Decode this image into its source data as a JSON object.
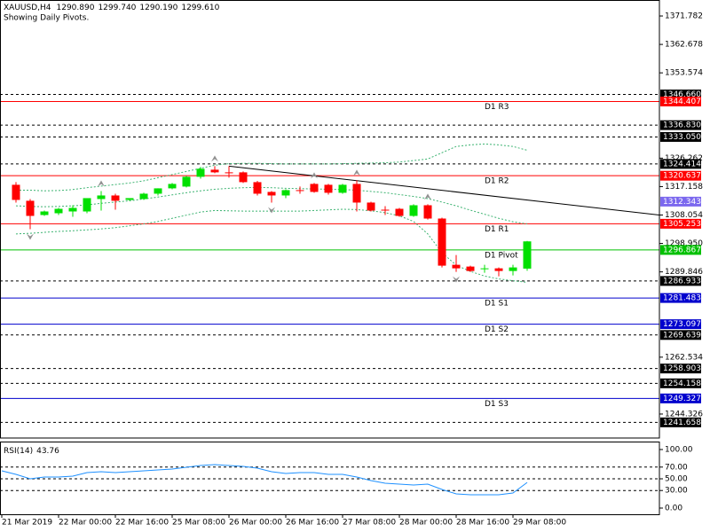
{
  "chart_data": {
    "type": "candlestick",
    "title": "XAUUSD,H4",
    "header_values": [
      "1290.890",
      "1299.740",
      "1290.190",
      "1299.610"
    ],
    "subtitle": "Showing Daily Pivots.",
    "categories": [
      "21 Mar 2019",
      null,
      null,
      null,
      "22 Mar 00:00",
      null,
      null,
      null,
      "22 Mar 16:00",
      null,
      null,
      null,
      "25 Mar 08:00",
      null,
      null,
      null,
      "26 Mar 00:00",
      null,
      null,
      null,
      "26 Mar 16:00",
      null,
      null,
      null,
      "27 Mar 08:00",
      null,
      null,
      null,
      "28 Mar 00:00",
      null,
      null,
      null,
      "28 Mar 16:00",
      null,
      null,
      null,
      "29 Mar 08:00",
      null
    ],
    "open": [
      null,
      1317.73,
      1312.61,
      1308.05,
      1308.62,
      1309.19,
      1309.19,
      1313.17,
      1314.31,
      1312.89,
      1313.17,
      1314.88,
      1316.59,
      1317.16,
      1320.29,
      1322.56,
      1321.71,
      1321.71,
      1318.58,
      1315.45,
      1314.31,
      1316.02,
      1318.01,
      1317.73,
      1315.17,
      1318.01,
      1312.04,
      1309.76,
      1310.04,
      1307.77,
      1311.18,
      1306.92,
      1292.12,
      1291.55,
      1290.7,
      1290.98,
      1290.13,
      1290.89
    ],
    "high": [
      null,
      1318.58,
      1313.17,
      1309.48,
      1310.33,
      1311.18,
      1313.46,
      1315.73,
      1314.88,
      1313.46,
      1315.17,
      1316.59,
      1318.3,
      1320.57,
      1323.42,
      1323.7,
      1323.7,
      1322.0,
      1319.0,
      1315.73,
      1316.3,
      1317.16,
      1318.3,
      1318.01,
      1318.01,
      1319.15,
      1312.3,
      1310.9,
      1310.33,
      1311.5,
      1311.5,
      1307.2,
      1295.25,
      1291.84,
      1292.12,
      1291.27,
      1292.12,
      1299.74
    ],
    "low": [
      null,
      1312.04,
      1303.5,
      1307.77,
      1308.05,
      1307.48,
      1308.62,
      1309.48,
      1309.76,
      1312.61,
      1312.89,
      1314.31,
      1316.3,
      1316.9,
      1319.7,
      1321.43,
      1320.0,
      1318.3,
      1314.31,
      1312.04,
      1313.46,
      1314.88,
      1315.17,
      1314.6,
      1314.88,
      1309.19,
      1309.19,
      1308.05,
      1307.48,
      1307.48,
      1306.6,
      1291.27,
      1289.85,
      1289.85,
      1289.56,
      1288.42,
      1288.71,
      1290.19
    ],
    "close": [
      null,
      1312.89,
      1307.77,
      1309.19,
      1310.04,
      1310.33,
      1313.46,
      1314.31,
      1312.61,
      1313.46,
      1314.88,
      1316.59,
      1318.01,
      1320.29,
      1322.85,
      1321.71,
      1321.43,
      1318.58,
      1314.88,
      1314.31,
      1316.02,
      1315.88,
      1315.45,
      1315.17,
      1317.73,
      1312.04,
      1309.48,
      1309.62,
      1307.77,
      1311.18,
      1306.92,
      1291.84,
      1290.98,
      1290.13,
      1290.98,
      1290.13,
      1291.27,
      1299.61
    ],
    "up_color": "#00e000",
    "down_color": "#ff0000",
    "ylim": [
      1236.65,
      1376.9
    ],
    "yticks": [
      1371.782,
      1362.678,
      1353.574,
      1326.262,
      1317.158,
      1308.054,
      {
        "value": 1298.95,
        "label": "1298.950"
      },
      1289.846,
      1262.534,
      1244.326
    ],
    "bands": {
      "color": "#3cb371",
      "upper": [
        null,
        1316,
        1316,
        1315.8,
        1315.9,
        1316.2,
        1316.8,
        1317.3,
        1317.8,
        1318.3,
        1319,
        1320,
        1321,
        1322,
        1323,
        1324,
        1324.5,
        1324.6,
        1324.6,
        1324.5,
        1324.4,
        1324.4,
        1324.4,
        1324.4,
        1324.5,
        1324.6,
        1324.7,
        1324.8,
        1325,
        1325.5,
        1326,
        1328,
        1330,
        1330.5,
        1330.8,
        1330.5,
        1330,
        1328.8
      ],
      "middle": [
        null,
        1311,
        1310.8,
        1310.7,
        1310.8,
        1311,
        1311.3,
        1311.8,
        1312.2,
        1312.6,
        1313.2,
        1313.8,
        1314.5,
        1315.2,
        1315.8,
        1316.3,
        1316.6,
        1316.8,
        1316.9,
        1316.8,
        1316.6,
        1316.5,
        1316.4,
        1316.3,
        1316.2,
        1316,
        1315.6,
        1315.2,
        1314.6,
        1314,
        1313.3,
        1312.2,
        1311,
        1309.6,
        1308.3,
        1307,
        1305.9,
        1305.2
      ],
      "lower": [
        null,
        1302,
        1302.2,
        1302.5,
        1302.8,
        1303,
        1303.3,
        1303.6,
        1304,
        1304.6,
        1305.2,
        1306,
        1307,
        1308,
        1309,
        1309.5,
        1309.4,
        1309.3,
        1309.3,
        1309.3,
        1309.3,
        1309.3,
        1309.5,
        1309.7,
        1309.9,
        1309.8,
        1309.4,
        1308.8,
        1307.8,
        1306,
        1302,
        1296,
        1292,
        1290,
        1288.5,
        1287.6,
        1287,
        1286.5
      ]
    },
    "trendline": {
      "color": "#000000",
      "x": [
        16,
        46.3
      ],
      "y": [
        1323.7,
        1308.05
      ]
    },
    "fractals": {
      "color": "#909090",
      "up": [
        7,
        15,
        22,
        25,
        30
      ],
      "down": [
        2,
        19,
        32
      ]
    },
    "levels": [
      {
        "price": {
          "value": 1346.66,
          "label": "1346.660"
        },
        "color": "#000000",
        "style": "dashed"
      },
      {
        "price": 1344.407,
        "name": "D1 R3",
        "color": "#ff0000",
        "style": "solid"
      },
      {
        "price": {
          "value": 1336.83,
          "label": "1336.830"
        },
        "color": "#000000",
        "style": "dashed"
      },
      {
        "price": {
          "value": 1333.05,
          "label": "1333.050"
        },
        "color": "#000000",
        "style": "dashed"
      },
      {
        "price": 1324.414,
        "color": "#000000",
        "style": "dashed"
      },
      {
        "price": 1320.637,
        "name": "D1 R2",
        "color": "#ff0000",
        "style": "solid"
      },
      {
        "price": 1312.343,
        "color": "#7b68ee",
        "style": "none"
      },
      {
        "price": 1305.253,
        "name": "D1 R1",
        "color": "#ff0000",
        "style": "solid"
      },
      {
        "price": 1296.867,
        "name": "D1 Pivot",
        "color": "#00c000",
        "style": "solid"
      },
      {
        "price": 1286.933,
        "color": "#000000",
        "style": "dashed"
      },
      {
        "price": 1281.483,
        "name": "D1 S1",
        "color": "#0000cd",
        "style": "solid"
      },
      {
        "price": 1273.097,
        "name": "D1 S2",
        "color": "#0000cd",
        "style": "solid"
      },
      {
        "price": 1269.639,
        "color": "#000000",
        "style": "dashed"
      },
      {
        "price": 1258.903,
        "color": "#000000",
        "style": "dashed"
      },
      {
        "price": 1254.158,
        "color": "#000000",
        "style": "dashed"
      },
      {
        "price": 1249.327,
        "name": "D1 S3",
        "color": "#0000cd",
        "style": "solid"
      },
      {
        "price": 1241.658,
        "color": "#000000",
        "style": "dashed"
      }
    ],
    "rsi": {
      "name": "RSI(14)",
      "color": "#1e90ff",
      "values": [
        63.6,
        57.6,
        50,
        53,
        53,
        54.5,
        60.6,
        62.1,
        60.6,
        62.1,
        63.6,
        65.2,
        66.7,
        69.7,
        72.7,
        74.2,
        72.7,
        71.2,
        68.2,
        62.1,
        59.1,
        60.6,
        60.6,
        57.6,
        57.6,
        53,
        47,
        42.4,
        40.9,
        39.4,
        40.9,
        31.8,
        24.2,
        22.7,
        22.7,
        22.7,
        25.8,
        43.76
      ],
      "ylim": [
        -12.1,
        113.6
      ],
      "yticks": [
        {
          "value": 100,
          "label": "100.00"
        },
        {
          "value": 70,
          "label": "70.00"
        },
        {
          "value": 50,
          "label": "50.00"
        },
        {
          "value": 30,
          "label": "30.00"
        },
        {
          "value": 0,
          "label": "0.00"
        }
      ],
      "levels": [
        70,
        50,
        30
      ]
    }
  }
}
